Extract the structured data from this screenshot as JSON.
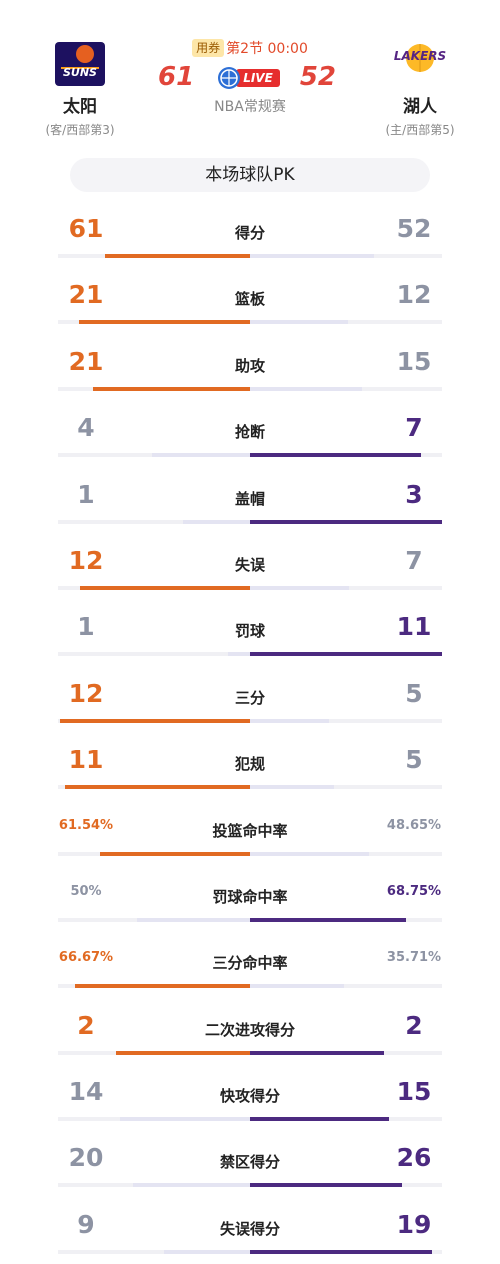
{
  "header": {
    "home": {
      "name": "太阳",
      "sub": "(客/西部第3)",
      "logo_text": "SUNS",
      "logo_icon": "suns-logo-icon",
      "logo_color": "#e56020"
    },
    "away": {
      "name": "湖人",
      "sub": "(主/西部第5)",
      "logo_text": "LAKERS",
      "logo_icon": "lakers-logo-icon",
      "logo_color": "#fdb927"
    },
    "coupon": "用券",
    "period": "第2节 00:00",
    "home_score": "61",
    "away_score": "52",
    "live": "LIVE",
    "league": "NBA常规赛"
  },
  "pk_title": "本场球队PK",
  "colors": {
    "home": "#e16a22",
    "away": "#4c2a80",
    "muted": "#8d93a3"
  },
  "stats": [
    {
      "label": "得分",
      "home": "61",
      "away": "52",
      "home_num": 61,
      "away_num": 52,
      "leader": "home"
    },
    {
      "label": "篮板",
      "home": "21",
      "away": "12",
      "home_num": 21,
      "away_num": 12,
      "leader": "home"
    },
    {
      "label": "助攻",
      "home": "21",
      "away": "15",
      "home_num": 21,
      "away_num": 15,
      "leader": "home"
    },
    {
      "label": "抢断",
      "home": "4",
      "away": "7",
      "home_num": 4,
      "away_num": 7,
      "leader": "away"
    },
    {
      "label": "盖帽",
      "home": "1",
      "away": "3",
      "home_num": 1,
      "away_num": 3,
      "leader": "away"
    },
    {
      "label": "失误",
      "home": "12",
      "away": "7",
      "home_num": 12,
      "away_num": 7,
      "leader": "home"
    },
    {
      "label": "罚球",
      "home": "1",
      "away": "11",
      "home_num": 1,
      "away_num": 11,
      "leader": "away"
    },
    {
      "label": "三分",
      "home": "12",
      "away": "5",
      "home_num": 12,
      "away_num": 5,
      "leader": "home"
    },
    {
      "label": "犯规",
      "home": "11",
      "away": "5",
      "home_num": 11,
      "away_num": 5,
      "leader": "home"
    },
    {
      "label": "投篮命中率",
      "home": "61.54%",
      "away": "48.65%",
      "home_num": 61.54,
      "away_num": 48.65,
      "leader": "home",
      "pct": true
    },
    {
      "label": "罚球命中率",
      "home": "50%",
      "away": "68.75%",
      "home_num": 50,
      "away_num": 68.75,
      "leader": "away",
      "pct": true
    },
    {
      "label": "三分命中率",
      "home": "66.67%",
      "away": "35.71%",
      "home_num": 66.67,
      "away_num": 35.71,
      "leader": "home",
      "pct": true
    },
    {
      "label": "二次进攻得分",
      "home": "2",
      "away": "2",
      "home_num": 2,
      "away_num": 2,
      "leader": "both"
    },
    {
      "label": "快攻得分",
      "home": "14",
      "away": "15",
      "home_num": 14,
      "away_num": 15,
      "leader": "away"
    },
    {
      "label": "禁区得分",
      "home": "20",
      "away": "26",
      "home_num": 20,
      "away_num": 26,
      "leader": "away"
    },
    {
      "label": "失误得分",
      "home": "9",
      "away": "19",
      "home_num": 9,
      "away_num": 19,
      "leader": "away"
    }
  ]
}
